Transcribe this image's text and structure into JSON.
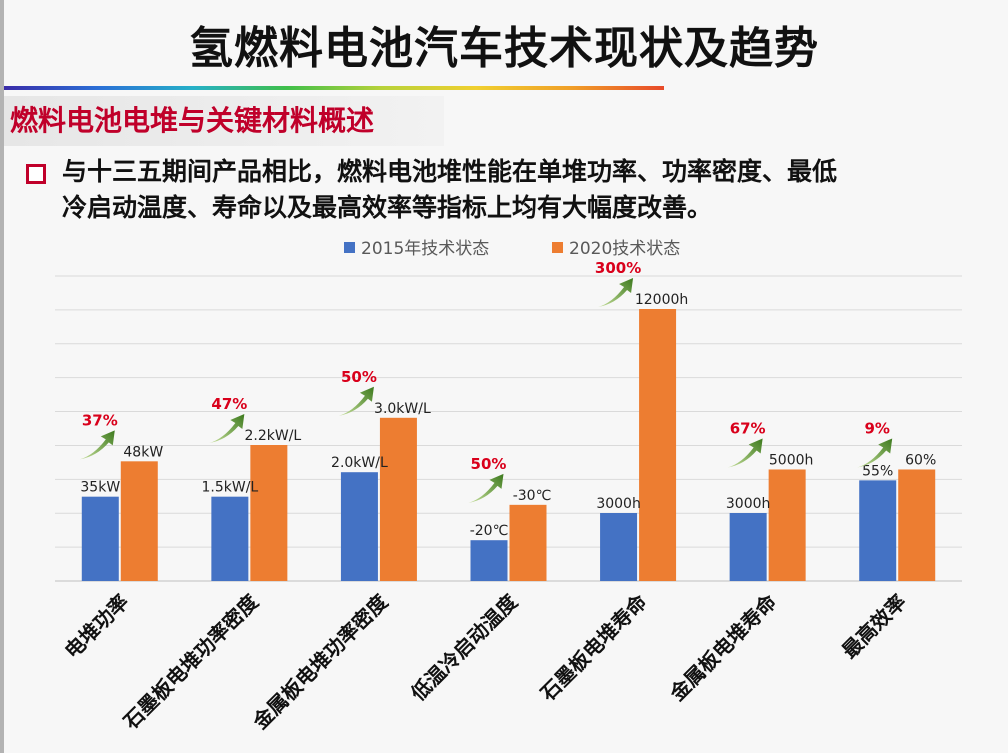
{
  "title": "氢燃料电池汽车技术现状及趋势",
  "subtitle": "燃料电池电堆与关键材料概述",
  "bullet": {
    "line1": "与十三五期间产品相比，燃料电池堆性能在单堆功率、功率密度、最低",
    "line2": "冷启动温度、寿命以及最高效率等指标上均有大幅度改善。"
  },
  "colors": {
    "series_2015": "#4472c4",
    "series_2020": "#ed7d31",
    "percent_label": "#d9001b",
    "arrow": "#4f8f2a",
    "accent": "#c0002a"
  },
  "chart_data": {
    "type": "bar",
    "grid": true,
    "legend_position": "top",
    "categories": [
      "电堆功率",
      "石墨板电堆功率密度",
      "金属板电堆功率密度",
      "低温冷启动温度",
      "石墨板电堆寿命",
      "金属板电堆寿命",
      "最高效率"
    ],
    "series": [
      {
        "name": "2015年技术状态",
        "relative_heights": [
          0.31,
          0.31,
          0.4,
          0.15,
          0.25,
          0.25,
          0.37
        ],
        "labels": [
          "35kW",
          "1.5kW/L",
          "2.0kW/L",
          "-20℃",
          "3000h",
          "3000h",
          "55%"
        ]
      },
      {
        "name": "2020技术状态",
        "relative_heights": [
          0.44,
          0.5,
          0.6,
          0.28,
          1.0,
          0.41,
          0.41
        ],
        "labels": [
          "48kW",
          "2.2kW/L",
          "3.0kW/L",
          "-30℃",
          "12000h",
          "5000h",
          "60%"
        ]
      }
    ],
    "improvements": [
      "37%",
      "47%",
      "50%",
      "50%",
      "300%",
      "67%",
      "9%"
    ]
  }
}
